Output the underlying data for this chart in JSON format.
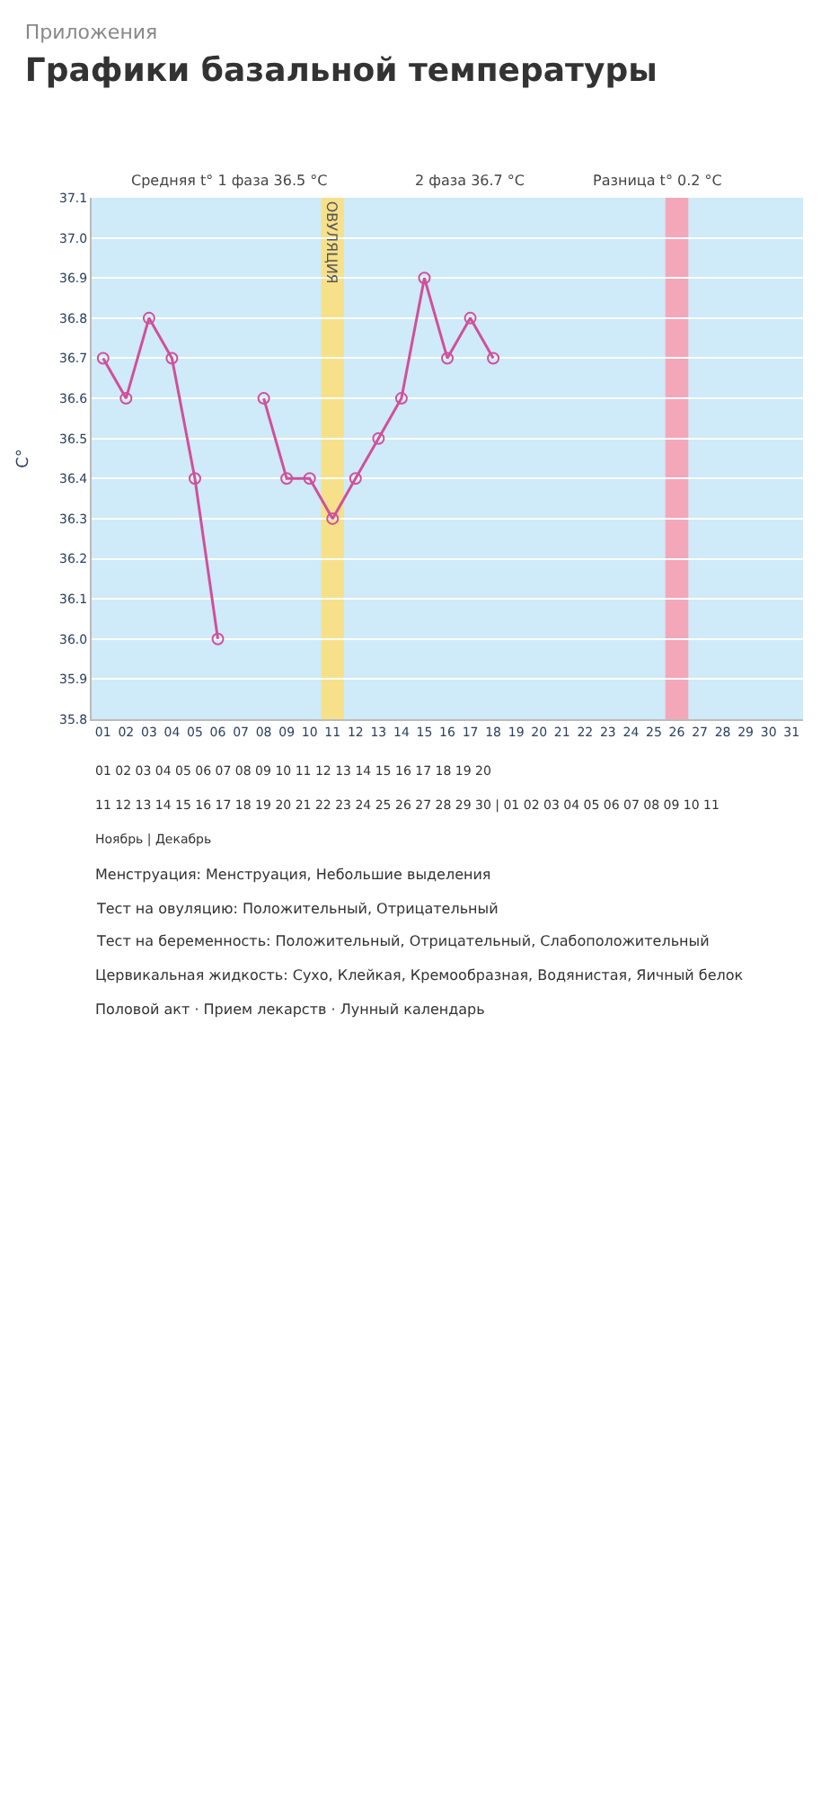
{
  "chart_data": {
    "type": "line",
    "title": "Графики базальной температуры",
    "subtitle": "Приложения",
    "ylabel": "C°",
    "categories": [
      "01",
      "02",
      "03",
      "04",
      "05",
      "06",
      "07",
      "08",
      "09",
      "10",
      "11",
      "12",
      "13",
      "14",
      "15",
      "16",
      "17",
      "18",
      "19",
      "20",
      "21",
      "22",
      "23",
      "24",
      "25",
      "26",
      "27",
      "28",
      "29",
      "30",
      "31"
    ],
    "series": [
      {
        "color": "#d0509a",
        "values": [
          36.7,
          36.6,
          36.8,
          36.7,
          36.4,
          36.0,
          null,
          36.6,
          36.4,
          36.4,
          36.3,
          36.4,
          36.5,
          36.6,
          36.9,
          36.7,
          36.8,
          36.7,
          null,
          null,
          null,
          null,
          null,
          null,
          null,
          null,
          null,
          null,
          null,
          null,
          null
        ]
      }
    ],
    "ylim": [
      35.8,
      37.1
    ],
    "yticks": [
      35.8,
      35.9,
      {
        "value": 36,
        "label": "36.0"
      },
      36.1,
      36.2,
      36.3,
      36.4,
      36.5,
      36.6,
      36.7,
      36.8,
      36.9,
      {
        "value": 37,
        "label": "37.0"
      },
      37.1
    ],
    "grid": "y",
    "marker": "circle",
    "line_style": "solid",
    "bands": [
      {
        "axis": "x",
        "from": "11",
        "to": "11",
        "label": "ОВУЛЯЦИЯ",
        "color": "#f7e08a"
      },
      {
        "axis": "x",
        "from": "26",
        "to": "26",
        "color": "#f4a7b9"
      }
    ],
    "annotations": [
      "Средняя t° 1 фаза 36.5 °C",
      "2 фаза 36.7 °C",
      "Разница t° 0.2 °C",
      "01 02 03 04 05 06 07 08 09 10 11 12 13 14 15 16 17 18 19 20",
      "11 12 13 14 15 16 17 18 19 20 21 22 23 24 25 26 27 28 29 30 | 01 02 03 04 05 06 07 08 09 10 11",
      "Ноябрь | Декабрь",
      "Менструация: Менструация, Небольшие выделения",
      "Тест на овуляцию: Положительный, Отрицательный",
      "Тест на беременность: Положительный, Отрицательный, Слабоположительный",
      "Цервикальная жидкость: Сухо, Клейкая, Кремообразная, Водянистая, Яичный белок",
      "Половой акт · Прием лекарств · Лунный календарь"
    ]
  }
}
